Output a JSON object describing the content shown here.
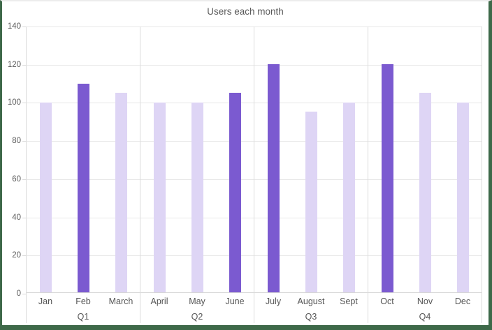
{
  "window": {
    "colors": {
      "frame": "#3e6949",
      "frame_top": "#ececec",
      "bar": "#ded5f5",
      "bar_emphasis": "#7b5ad0",
      "gridline": "#e7e7e7",
      "axis_line": "#d6d6d6"
    }
  },
  "chart_data": {
    "type": "bar",
    "title": "Users each month",
    "xlabel": "",
    "ylabel": "",
    "ylim": [
      0,
      140
    ],
    "yticks": [
      0,
      20,
      40,
      60,
      80,
      100,
      120,
      140
    ],
    "grid": true,
    "legend": "none",
    "categories": [
      "Jan",
      "Feb",
      "March",
      "April",
      "May",
      "June",
      "July",
      "August",
      "Sept",
      "Oct",
      "Nov",
      "Dec"
    ],
    "values": [
      100,
      110,
      105,
      100,
      100,
      105,
      120,
      95,
      100,
      120,
      105,
      100
    ],
    "groups": [
      {
        "label": "Q1",
        "categories": [
          "Jan",
          "Feb",
          "March"
        ],
        "values": [
          100,
          110,
          105
        ],
        "emphasis": [
          false,
          true,
          false
        ]
      },
      {
        "label": "Q2",
        "categories": [
          "April",
          "May",
          "June"
        ],
        "values": [
          100,
          100,
          105
        ],
        "emphasis": [
          false,
          false,
          true
        ]
      },
      {
        "label": "Q3",
        "categories": [
          "July",
          "August",
          "Sept"
        ],
        "values": [
          120,
          95,
          100
        ],
        "emphasis": [
          true,
          false,
          false
        ]
      },
      {
        "label": "Q4",
        "categories": [
          "Oct",
          "Nov",
          "Dec"
        ],
        "values": [
          120,
          105,
          100
        ],
        "emphasis": [
          true,
          false,
          false
        ]
      }
    ]
  }
}
